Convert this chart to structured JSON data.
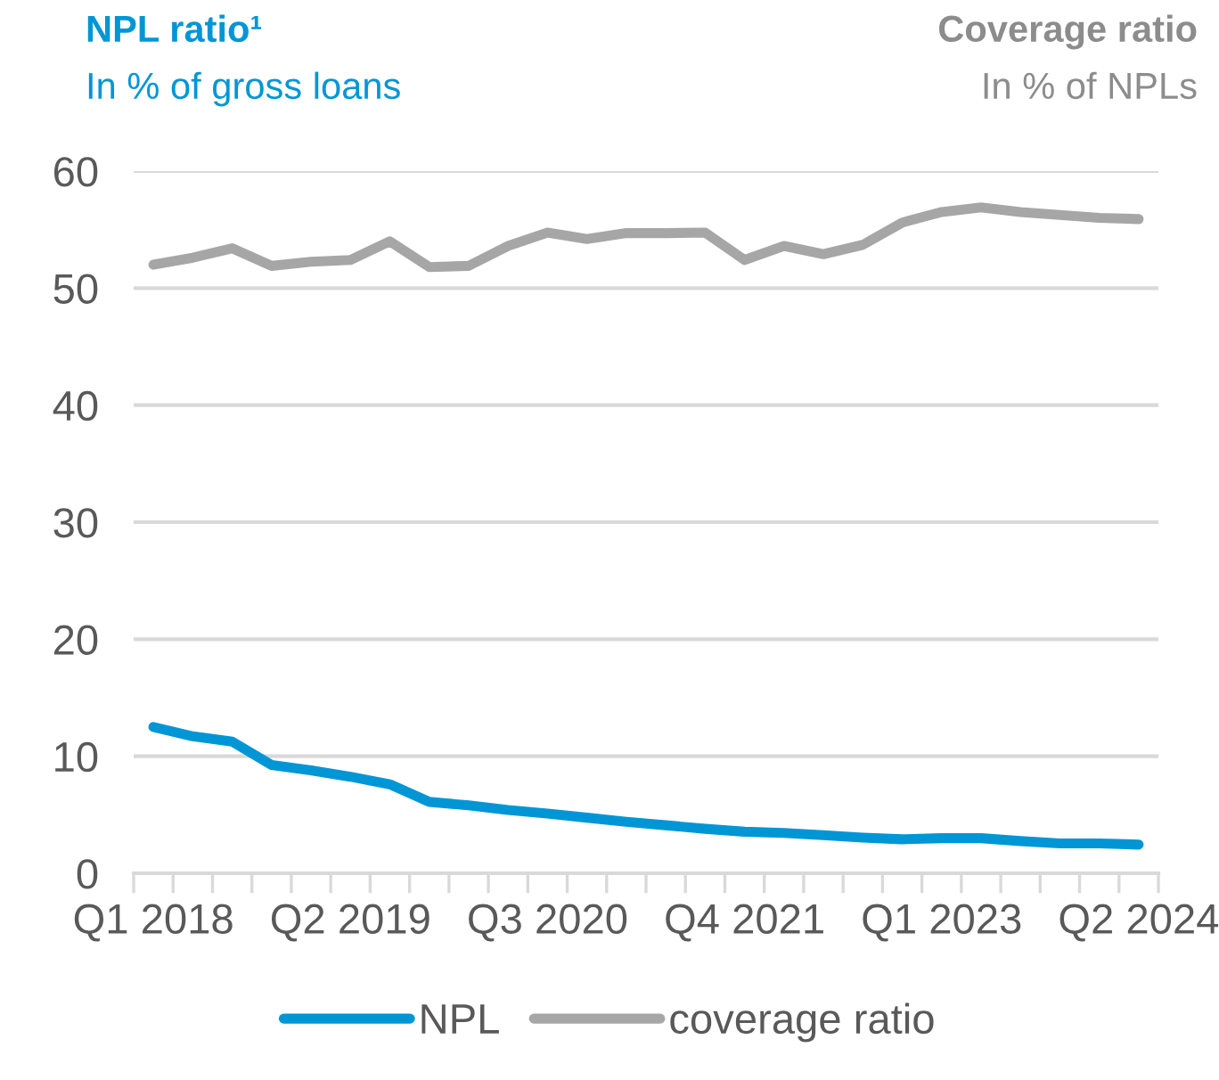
{
  "chart_data": {
    "type": "line",
    "title": "NPL ratio¹",
    "subtitle": "In % of gross loans",
    "annotations": [
      "Coverage ratio",
      "In % of NPLs"
    ],
    "categories": [
      "Q1 2018",
      null,
      null,
      null,
      null,
      "Q2 2019",
      null,
      null,
      null,
      null,
      "Q3 2020",
      null,
      null,
      null,
      null,
      "Q4 2021",
      null,
      null,
      null,
      null,
      "Q1 2023",
      null,
      null,
      null,
      null,
      "Q2 2024"
    ],
    "series": [
      {
        "name": "NPL",
        "color": "#0096d6",
        "values": [
          12.5,
          11.7,
          11.25,
          9.25,
          8.8,
          8.25,
          7.6,
          6.1,
          5.8,
          5.4,
          5.1,
          4.75,
          4.4,
          4.1,
          3.8,
          3.55,
          3.45,
          3.25,
          3.05,
          2.9,
          3.0,
          3.0,
          2.75,
          2.55,
          2.55,
          2.45
        ]
      },
      {
        "name": "coverage ratio",
        "color": "#a6a6a6",
        "values": [
          52.0,
          52.6,
          53.4,
          51.9,
          52.25,
          52.4,
          54.0,
          51.8,
          51.9,
          53.6,
          54.75,
          54.2,
          54.7,
          54.7,
          54.75,
          52.4,
          53.6,
          52.9,
          53.7,
          55.6,
          56.5,
          56.9,
          56.5,
          56.25,
          56.0,
          55.9
        ]
      }
    ],
    "ylim": [
      0,
      60
    ],
    "yticks": [
      0,
      10,
      20,
      30,
      40,
      50,
      60
    ],
    "grid": "y",
    "legend": "bottom",
    "marker": "none",
    "line_style": "solid"
  }
}
